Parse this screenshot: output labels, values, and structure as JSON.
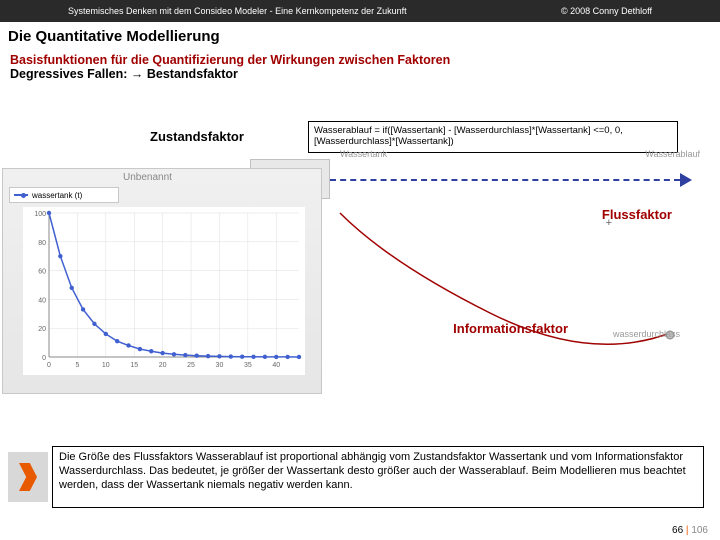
{
  "header": {
    "left": "Systemisches Denken mit dem Consideo Modeler - Eine Kernkompetenz der Zukunft",
    "right": "© 2008 Conny Dethloff"
  },
  "title": "Die Quantitative Modellierung",
  "section": {
    "line1": "Basisfunktionen für die Quantifizierung der Wirkungen zwischen Faktoren",
    "line2a": "Degressives Fallen: ",
    "line2b": "→",
    "line2c": " Bestandsfaktor"
  },
  "labels": {
    "zustand": "Zustandsfaktor",
    "fluss": "Flussfaktor",
    "info": "Informationsfaktor",
    "plus": "+"
  },
  "formula": "Wasserablauf = if([Wassertank] - [Wasserdurchlass]*[Wassertank] <=0, 0, [Wasserdurchlass]*[Wassertank])",
  "chart": {
    "title": "Unbenannt",
    "legend": "wassertank (t)",
    "x": [
      0,
      2,
      4,
      6,
      8,
      10,
      12,
      14,
      16,
      18,
      20,
      22,
      24,
      26,
      28,
      30,
      32,
      34,
      36,
      38,
      40,
      42,
      44
    ],
    "y": [
      100,
      70,
      48,
      33,
      23,
      16,
      11,
      8,
      5.5,
      4,
      2.7,
      1.9,
      1.3,
      0.9,
      0.6,
      0.45,
      0.3,
      0.21,
      0.14,
      0.1,
      0.07,
      0.05,
      0.03
    ],
    "ylim": [
      0,
      100
    ],
    "xlim": [
      0,
      44
    ],
    "ytick_step": 20,
    "xtick_step": 5,
    "line_color": "#4060d0",
    "marker_color": "#4060d0",
    "background": "#ffffff",
    "grid_color": "#dddddd"
  },
  "diagram": {
    "label1": "Wassertank",
    "label2": "Wasserablauf",
    "wd_label": "wasserdurchlass",
    "arrow_color": "#3040a0",
    "curve_color": "#a00000"
  },
  "bottom_text": "Die Größe des Flussfaktors Wasserablauf ist proportional abhängig vom Zustandsfaktor Wassertank und vom Informationsfaktor Wasserdurchlass. Das bedeutet, je größer der Wassertank desto größer auch der Wasserablauf. Beim Modellieren mus beachtet werden, dass der Wassertank niemals negativ werden kann.",
  "footer": {
    "page": "66",
    "sep": "|",
    "total": "106"
  }
}
